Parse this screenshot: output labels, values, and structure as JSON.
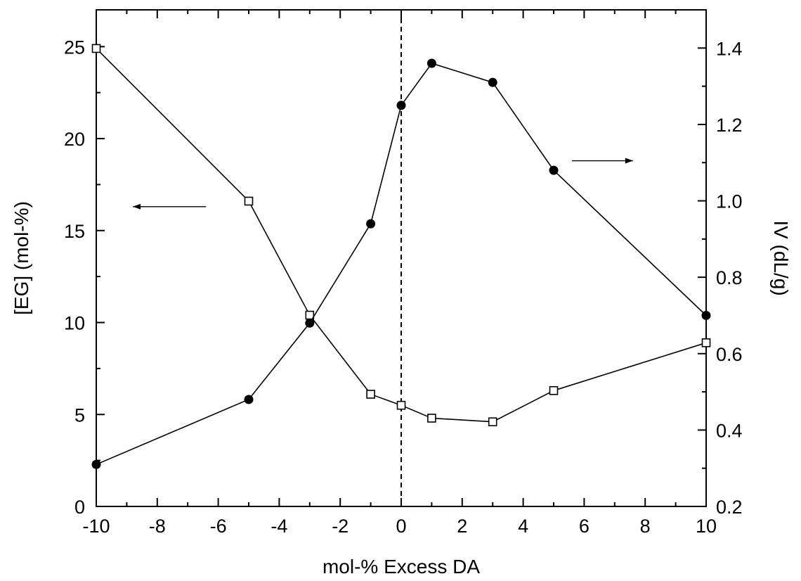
{
  "chart_data": {
    "type": "line",
    "title": "",
    "xlabel": "mol-% Excess DA",
    "ylabel_left": "[EG] (mol-%)",
    "ylabel_right": "IV (dL/g)",
    "xlim": [
      -10,
      10
    ],
    "ylim_left": [
      0,
      27
    ],
    "ylim_right": [
      0.2,
      1.5
    ],
    "x_ticks": [
      -10,
      -8,
      -6,
      -4,
      -2,
      0,
      2,
      4,
      6,
      8,
      10
    ],
    "x_tick_labels": [
      "-10",
      "-8",
      "-6",
      "-4",
      "-2",
      "0",
      "2",
      "4",
      "6",
      "8",
      "10"
    ],
    "y_left_ticks": [
      0,
      5,
      10,
      15,
      20,
      25
    ],
    "y_left_tick_labels": [
      "0",
      "5",
      "10",
      "15",
      "20",
      "25"
    ],
    "y_right_ticks": [
      0.2,
      0.4,
      0.6,
      0.8,
      1.0,
      1.2,
      1.4
    ],
    "y_right_tick_labels": [
      "0.2",
      "0.4",
      "0.6",
      "0.8",
      "1.0",
      "1.2",
      "1.4"
    ],
    "grid": false,
    "reference_line": {
      "x": 0,
      "style": "dashed"
    },
    "series": [
      {
        "axis": "left",
        "marker": "open-square",
        "x": [
          -10,
          -5,
          -3,
          -1,
          0,
          1,
          3,
          5,
          10
        ],
        "y": [
          24.9,
          16.6,
          10.4,
          6.1,
          5.5,
          4.8,
          4.6,
          6.3,
          8.9
        ]
      },
      {
        "axis": "right",
        "marker": "filled-circle",
        "x": [
          -10,
          -5,
          -3,
          -1,
          0,
          1,
          3,
          5,
          10
        ],
        "y": [
          0.31,
          0.48,
          0.68,
          0.94,
          1.25,
          1.36,
          1.31,
          1.08,
          0.7
        ]
      }
    ],
    "annotations": [
      {
        "type": "arrow",
        "direction": "left",
        "series_axis": "left"
      },
      {
        "type": "arrow",
        "direction": "right",
        "series_axis": "right"
      }
    ]
  }
}
